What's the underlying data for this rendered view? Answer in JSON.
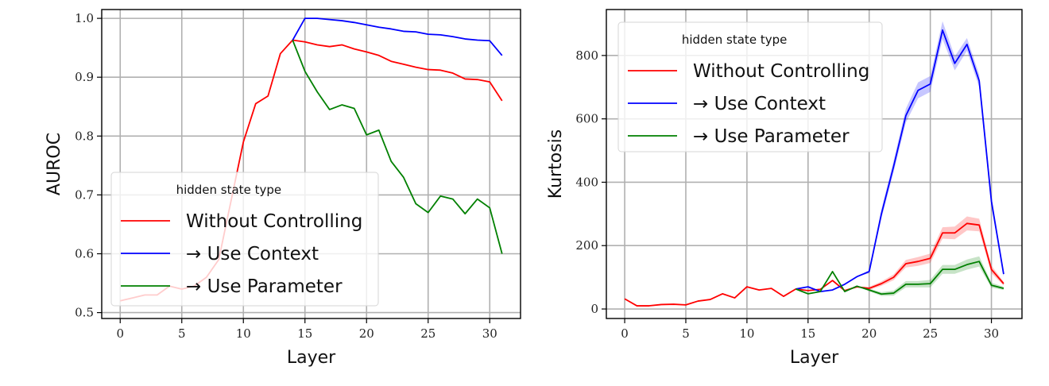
{
  "chart_data": [
    {
      "type": "line",
      "title": "",
      "xlabel": "Layer",
      "ylabel": "AUROC",
      "xlim": [
        -1.5,
        32.5
      ],
      "ylim": [
        0.49,
        1.015
      ],
      "xticks": [
        0,
        5,
        10,
        15,
        20,
        25,
        30
      ],
      "yticks": [
        0.5,
        0.6,
        0.7,
        0.8,
        0.9,
        1.0
      ],
      "ytick_labels": [
        "0.5",
        "0.6",
        "0.7",
        "0.8",
        "0.9",
        "1.0"
      ],
      "grid": true,
      "legend": {
        "title": "hidden state type",
        "location": "lower-left",
        "entries": [
          "Without Controlling",
          "→ Use Context",
          "→ Use Parameter"
        ]
      },
      "series": [
        {
          "name": "Without Controlling",
          "color": "#ff0000",
          "x": [
            0,
            1,
            2,
            3,
            4,
            5,
            6,
            7,
            8,
            9,
            10,
            11,
            12,
            13,
            14,
            15,
            16,
            17,
            18,
            19,
            20,
            21,
            22,
            23,
            24,
            25,
            26,
            27,
            28,
            29,
            30,
            31
          ],
          "values": [
            0.52,
            0.525,
            0.53,
            0.53,
            0.545,
            0.54,
            0.545,
            0.56,
            0.59,
            0.69,
            0.79,
            0.855,
            0.868,
            0.94,
            0.963,
            0.96,
            0.955,
            0.952,
            0.955,
            0.948,
            0.943,
            0.937,
            0.927,
            0.922,
            0.917,
            0.913,
            0.912,
            0.907,
            0.897,
            0.896,
            0.892,
            0.86
          ]
        },
        {
          "name": "→ Use Context",
          "color": "#0000ff",
          "x": [
            14,
            15,
            16,
            17,
            18,
            19,
            20,
            21,
            22,
            23,
            24,
            25,
            26,
            27,
            28,
            29,
            30,
            31
          ],
          "values": [
            0.963,
            1.0,
            1.0,
            0.998,
            0.996,
            0.993,
            0.989,
            0.985,
            0.982,
            0.978,
            0.977,
            0.973,
            0.972,
            0.969,
            0.965,
            0.963,
            0.962,
            0.937
          ]
        },
        {
          "name": "→ Use Parameter",
          "color": "#008000",
          "x": [
            14,
            15,
            16,
            17,
            18,
            19,
            20,
            21,
            22,
            23,
            24,
            25,
            26,
            27,
            28,
            29,
            30,
            31
          ],
          "values": [
            0.963,
            0.91,
            0.875,
            0.845,
            0.853,
            0.847,
            0.802,
            0.81,
            0.757,
            0.73,
            0.685,
            0.67,
            0.698,
            0.693,
            0.668,
            0.693,
            0.678,
            0.6
          ]
        }
      ]
    },
    {
      "type": "line",
      "title": "",
      "xlabel": "Layer",
      "ylabel": "Kurtosis",
      "xlim": [
        -1.5,
        32.5
      ],
      "ylim": [
        -30,
        945
      ],
      "xticks": [
        0,
        5,
        10,
        15,
        20,
        25,
        30
      ],
      "yticks": [
        0,
        200,
        400,
        600,
        800
      ],
      "ytick_labels": [
        "0",
        "200",
        "400",
        "600",
        "800"
      ],
      "grid": true,
      "legend": {
        "title": "hidden state type",
        "location": "upper-left",
        "entries": [
          "Without Controlling",
          "→ Use Context",
          "→ Use Parameter"
        ]
      },
      "series": [
        {
          "name": "Without Controlling",
          "color": "#ff0000",
          "x": [
            0,
            1,
            2,
            3,
            4,
            5,
            6,
            7,
            8,
            9,
            10,
            11,
            12,
            13,
            14,
            15,
            16,
            17,
            18,
            19,
            20,
            21,
            22,
            23,
            24,
            25,
            26,
            27,
            28,
            29,
            30,
            31
          ],
          "values": [
            32,
            10,
            10,
            14,
            15,
            13,
            25,
            30,
            48,
            35,
            70,
            60,
            65,
            40,
            63,
            58,
            62,
            90,
            58,
            70,
            65,
            80,
            100,
            143,
            150,
            160,
            240,
            240,
            270,
            265,
            125,
            80
          ],
          "band": [
            0,
            0,
            0,
            0,
            0,
            0,
            0,
            0,
            0,
            0,
            0,
            0,
            0,
            0,
            0,
            0,
            0,
            0,
            0,
            0,
            5,
            7,
            9,
            12,
            14,
            15,
            18,
            20,
            22,
            20,
            12,
            6
          ]
        },
        {
          "name": "→ Use Context",
          "color": "#0000ff",
          "x": [
            14,
            15,
            16,
            17,
            18,
            19,
            20,
            21,
            22,
            23,
            24,
            25,
            26,
            27,
            28,
            29,
            30,
            31
          ],
          "values": [
            63,
            70,
            55,
            60,
            78,
            102,
            118,
            300,
            450,
            610,
            690,
            710,
            880,
            775,
            835,
            720,
            340,
            110
          ],
          "band": [
            0,
            0,
            0,
            0,
            0,
            0,
            5,
            15,
            18,
            22,
            25,
            25,
            28,
            22,
            20,
            20,
            18,
            8
          ]
        },
        {
          "name": "→ Use Parameter",
          "color": "#008000",
          "x": [
            14,
            15,
            16,
            17,
            18,
            19,
            20,
            21,
            22,
            23,
            24,
            25,
            26,
            27,
            28,
            29,
            30,
            31
          ],
          "values": [
            63,
            48,
            55,
            118,
            55,
            72,
            60,
            47,
            50,
            78,
            78,
            80,
            125,
            125,
            140,
            150,
            75,
            65
          ],
          "band": [
            0,
            0,
            0,
            0,
            0,
            0,
            4,
            6,
            8,
            10,
            10,
            12,
            14,
            14,
            16,
            16,
            8,
            5
          ]
        }
      ]
    }
  ]
}
